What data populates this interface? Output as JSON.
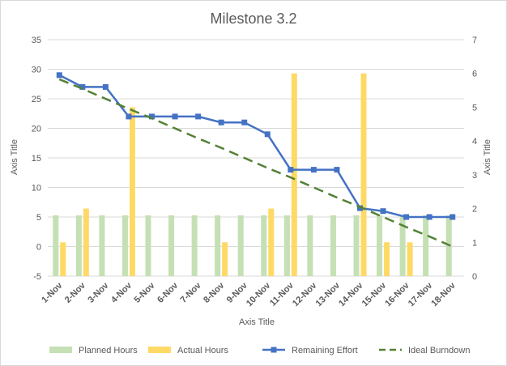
{
  "chart_data": {
    "type": "bar+line",
    "title": "Milestone 3.2",
    "xlabel": "Axis Title",
    "ylabel_left": "Axis Title",
    "ylabel_right": "Axis Title",
    "categories": [
      "1-Nov",
      "2-Nov",
      "3-Nov",
      "4-Nov",
      "5-Nov",
      "6-Nov",
      "7-Nov",
      "8-Nov",
      "9-Nov",
      "10-Nov",
      "11-Nov",
      "12-Nov",
      "13-Nov",
      "14-Nov",
      "15-Nov",
      "16-Nov",
      "17-Nov",
      "18-Nov"
    ],
    "left_axis": {
      "min": -5,
      "max": 35,
      "step": 5
    },
    "right_axis": {
      "min": 0,
      "max": 7,
      "step": 1
    },
    "grid": true,
    "legend_position": "bottom",
    "series": [
      {
        "name": "Planned Hours",
        "type": "bar",
        "axis": "right",
        "color": "#c5e0b4",
        "values": [
          1.8,
          1.8,
          1.8,
          1.8,
          1.8,
          1.8,
          1.8,
          1.8,
          1.8,
          1.8,
          1.8,
          1.8,
          1.8,
          1.8,
          1.8,
          1.8,
          1.8,
          1.8
        ]
      },
      {
        "name": "Actual Hours",
        "type": "bar",
        "axis": "right",
        "color": "#ffd966",
        "values": [
          1,
          2,
          0,
          5,
          0,
          0,
          0,
          1,
          0,
          2,
          6,
          0,
          0,
          6,
          1,
          1,
          0,
          0
        ]
      },
      {
        "name": "Remaining Effort",
        "type": "line",
        "axis": "left",
        "color": "#4472c4",
        "marker": "square",
        "values": [
          29,
          27,
          27,
          22,
          22,
          22,
          22,
          21,
          21,
          19,
          13,
          13,
          13,
          6.5,
          6,
          5,
          5,
          5
        ]
      },
      {
        "name": "Ideal Burndown",
        "type": "line",
        "axis": "left",
        "color": "#548235",
        "dash": true,
        "values": [
          28.3,
          26.7,
          25,
          23.3,
          21.7,
          20,
          18.3,
          16.7,
          15,
          13.3,
          11.7,
          10,
          8.3,
          6.7,
          5,
          3.3,
          1.7,
          0
        ]
      }
    ]
  }
}
